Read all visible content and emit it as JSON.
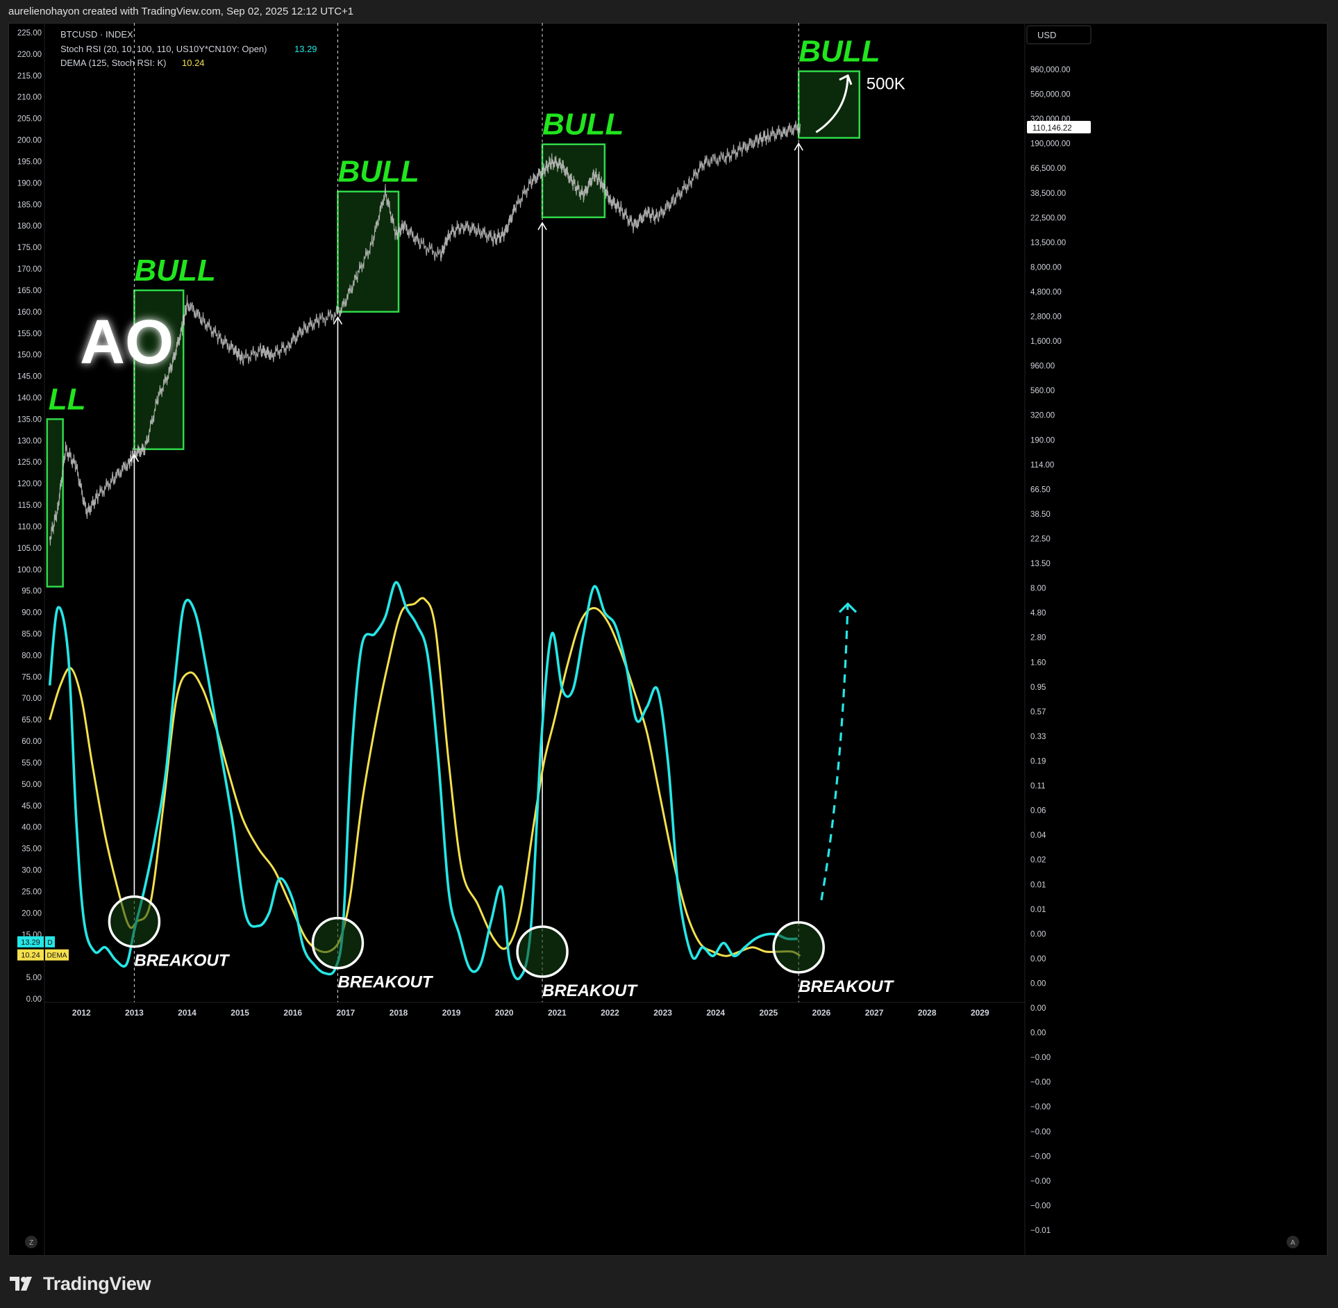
{
  "header": {
    "caption": "aurelienohayon created with TradingView.com, Sep 02, 2025 12:12 UTC+1"
  },
  "footer": {
    "brand": "TradingView",
    "logo_icon": "tradingview-logo-icon"
  },
  "legend": {
    "symbol": "BTCUSD · INDEX",
    "stoch_label": "Stoch RSI (20, 10, 100, 110, US10Y*CN10Y: Open)",
    "stoch_value": "13.29",
    "dema_label": "DEMA (125, Stoch RSI: K)",
    "dema_value": "10.24"
  },
  "badges": [
    {
      "value": "13.29",
      "tag": "D",
      "color": "#26e6e6"
    },
    {
      "value": "10.24",
      "tag": "DEMA",
      "color": "#f5e04d"
    }
  ],
  "currency_label": "USD",
  "price_badge": "110,146.22",
  "corner_buttons": {
    "left": "Z",
    "right": "A"
  },
  "annotations": {
    "ao_text": "AO",
    "bull_label": "BULL",
    "partial_bull_label": "LL",
    "target_label": "500K",
    "breakout_label": "BREAKOUT"
  },
  "colors": {
    "stoch_line": "#26e6e6",
    "dema_line": "#f5e04d",
    "bull_green": "#21e51e",
    "box_border": "#2fd94a",
    "box_fill": "#0b2a0b",
    "price_line": "#c8c8c8"
  },
  "chart_data": {
    "type": "line",
    "title": "BTCUSD · INDEX",
    "x_tick_labels": [
      "2012",
      "2013",
      "2014",
      "2015",
      "2016",
      "2017",
      "2018",
      "2019",
      "2020",
      "2021",
      "2022",
      "2023",
      "2024",
      "2025",
      "2026",
      "2027",
      "2028",
      "2029"
    ],
    "left_axis_labels": [
      "225.00",
      "220.00",
      "215.00",
      "210.00",
      "205.00",
      "200.00",
      "195.00",
      "190.00",
      "185.00",
      "180.00",
      "175.00",
      "170.00",
      "165.00",
      "160.00",
      "155.00",
      "150.00",
      "145.00",
      "140.00",
      "135.00",
      "130.00",
      "125.00",
      "120.00",
      "115.00",
      "110.00",
      "105.00",
      "100.00",
      "95.00",
      "90.00",
      "85.00",
      "80.00",
      "75.00",
      "70.00",
      "65.00",
      "60.00",
      "55.00",
      "50.00",
      "45.00",
      "40.00",
      "35.00",
      "30.00",
      "25.00",
      "20.00",
      "15.00",
      "10.00",
      "5.00",
      "0.00"
    ],
    "left_axis_range": [
      0,
      225
    ],
    "right_axis_labels": [
      "960,000.00",
      "560,000.00",
      "320,000.00",
      "190,000.00",
      "66,500.00",
      "38,500.00",
      "22,500.00",
      "13,500.00",
      "8,000.00",
      "4,800.00",
      "2,800.00",
      "1,600.00",
      "960.00",
      "560.00",
      "320.00",
      "190.00",
      "114.00",
      "66.50",
      "38.50",
      "22.50",
      "13.50",
      "8.00",
      "4.80",
      "2.80",
      "1.60",
      "0.95",
      "0.57",
      "0.33",
      "0.19",
      "0.11",
      "0.06",
      "0.04",
      "0.02",
      "0.01",
      "0.01",
      "0.00",
      "0.00",
      "0.00",
      "0.00",
      "0.00",
      "−0.00",
      "−0.00",
      "−0.00",
      "−0.00",
      "−0.00",
      "−0.00",
      "−0.00",
      "−0.01"
    ],
    "right_axis_scale": "log",
    "grid": false,
    "price_series": {
      "name": "BTCUSD",
      "x": [
        2011.4,
        2011.55,
        2011.7,
        2011.9,
        2012.1,
        2012.3,
        2012.6,
        2012.9,
        2013.0,
        2013.2,
        2013.45,
        2013.7,
        2013.9,
        2014.0,
        2014.3,
        2014.6,
        2014.9,
        2015.05,
        2015.4,
        2015.6,
        2015.9,
        2016.2,
        2016.5,
        2016.9,
        2017.2,
        2017.5,
        2017.75,
        2017.95,
        2018.1,
        2018.4,
        2018.8,
        2018.95,
        2019.2,
        2019.5,
        2019.8,
        2020.0,
        2020.2,
        2020.5,
        2020.75,
        2020.9,
        2021.1,
        2021.3,
        2021.5,
        2021.7,
        2021.85,
        2022.0,
        2022.2,
        2022.45,
        2022.7,
        2022.9,
        2023.2,
        2023.5,
        2023.8,
        2024.2,
        2024.5,
        2024.8,
        2025.0,
        2025.3,
        2025.6
      ],
      "left_axis_equiv": [
        107,
        114,
        128,
        124,
        113,
        117,
        121,
        125,
        127,
        128,
        140,
        147,
        156,
        162,
        158,
        154,
        151,
        149,
        151,
        150,
        152,
        156,
        158,
        160,
        168,
        176,
        188,
        178,
        180,
        176,
        173,
        178,
        180,
        179,
        177,
        178,
        184,
        190,
        193,
        195,
        194,
        190,
        187,
        192,
        190,
        186,
        184,
        180,
        183,
        182,
        186,
        190,
        195,
        196,
        198,
        200,
        201,
        202,
        203
      ]
    },
    "series": [
      {
        "name": "Stoch RSI",
        "x": [
          2011.4,
          2011.55,
          2011.75,
          2011.9,
          2012.05,
          2012.25,
          2012.45,
          2012.65,
          2012.85,
          2013.0,
          2013.2,
          2013.4,
          2013.6,
          2013.8,
          2013.95,
          2014.15,
          2014.35,
          2014.6,
          2014.85,
          2015.1,
          2015.35,
          2015.55,
          2015.75,
          2016.0,
          2016.2,
          2016.4,
          2016.6,
          2016.8,
          2016.95,
          2017.1,
          2017.3,
          2017.55,
          2017.75,
          2017.95,
          2018.15,
          2018.35,
          2018.55,
          2018.75,
          2018.95,
          2019.15,
          2019.35,
          2019.55,
          2019.75,
          2019.95,
          2020.1,
          2020.3,
          2020.5,
          2020.7,
          2020.9,
          2021.1,
          2021.3,
          2021.5,
          2021.7,
          2021.9,
          2022.1,
          2022.3,
          2022.5,
          2022.7,
          2022.9,
          2023.1,
          2023.3,
          2023.55,
          2023.75,
          2023.95,
          2024.15,
          2024.35,
          2024.55,
          2024.75,
          2024.95,
          2025.15,
          2025.35,
          2025.55
        ],
        "values": [
          73,
          91,
          80,
          42,
          18,
          11,
          12,
          9,
          8,
          16,
          26,
          38,
          53,
          78,
          92,
          90,
          78,
          60,
          42,
          20,
          17,
          20,
          28,
          23,
          12,
          8,
          6,
          7,
          17,
          55,
          82,
          85,
          89,
          97,
          91,
          87,
          80,
          56,
          25,
          15,
          7,
          8,
          18,
          26,
          9,
          5,
          16,
          60,
          85,
          72,
          72,
          85,
          96,
          90,
          87,
          78,
          65,
          68,
          72,
          55,
          25,
          10,
          12,
          10,
          13,
          10,
          12,
          14,
          15,
          15,
          14,
          14
        ]
      },
      {
        "name": "DEMA",
        "x": [
          2011.4,
          2011.6,
          2011.8,
          2012.0,
          2012.2,
          2012.45,
          2012.7,
          2012.9,
          2013.05,
          2013.3,
          2013.55,
          2013.8,
          2014.05,
          2014.3,
          2014.55,
          2014.8,
          2015.05,
          2015.35,
          2015.65,
          2015.95,
          2016.25,
          2016.55,
          2016.8,
          2016.95,
          2017.1,
          2017.3,
          2017.55,
          2017.8,
          2018.05,
          2018.3,
          2018.5,
          2018.7,
          2018.95,
          2019.2,
          2019.5,
          2019.8,
          2020.05,
          2020.3,
          2020.55,
          2020.75,
          2020.95,
          2021.2,
          2021.45,
          2021.7,
          2021.95,
          2022.2,
          2022.45,
          2022.7,
          2022.95,
          2023.2,
          2023.45,
          2023.7,
          2023.95,
          2024.2,
          2024.45,
          2024.7,
          2024.95,
          2025.2,
          2025.45,
          2025.6
        ],
        "values": [
          65,
          73,
          77,
          70,
          55,
          38,
          25,
          17,
          18,
          22,
          45,
          70,
          76,
          72,
          63,
          52,
          42,
          35,
          30,
          22,
          14,
          11,
          12,
          16,
          25,
          45,
          63,
          78,
          90,
          92,
          93,
          86,
          55,
          30,
          22,
          14,
          12,
          20,
          40,
          55,
          65,
          78,
          88,
          91,
          88,
          81,
          72,
          62,
          47,
          32,
          20,
          13,
          11,
          10,
          11,
          12,
          11,
          11,
          11,
          10
        ]
      }
    ],
    "bull_boxes": [
      {
        "x0": 2011.35,
        "x1": 2011.65,
        "y_low": 96,
        "y_high": 135,
        "label": "LL"
      },
      {
        "x0": 2013.0,
        "x1": 2013.93,
        "y_low": 128,
        "y_high": 165,
        "label": "BULL"
      },
      {
        "x0": 2016.85,
        "x1": 2018.0,
        "y_low": 160,
        "y_high": 188,
        "label": "BULL"
      },
      {
        "x0": 2020.72,
        "x1": 2021.9,
        "y_low": 182,
        "y_high": 199,
        "label": "BULL"
      },
      {
        "x0": 2025.57,
        "x1": 2026.72,
        "y_low": 200.5,
        "y_high": 216,
        "label": "BULL"
      }
    ],
    "breakouts": [
      {
        "x": 2013.0,
        "y": 18
      },
      {
        "x": 2016.85,
        "y": 13
      },
      {
        "x": 2020.72,
        "y": 11
      },
      {
        "x": 2025.57,
        "y": 12
      }
    ],
    "projected_arrow": {
      "from": [
        2026.0,
        23
      ],
      "to": [
        2026.5,
        92
      ]
    },
    "price_target_arrow": {
      "from": [
        2025.9,
        201.8
      ],
      "to": [
        2026.5,
        215
      ]
    }
  }
}
